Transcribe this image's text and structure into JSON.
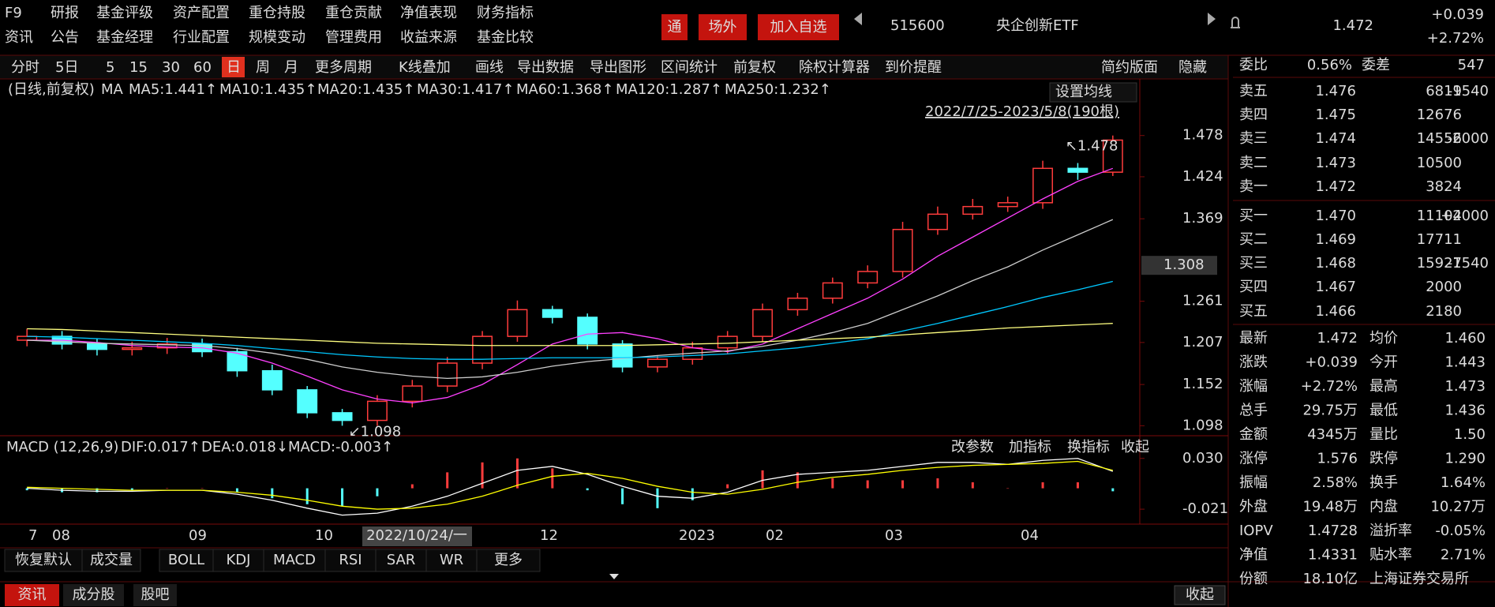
{
  "menu": {
    "row1": [
      "F9",
      "研报",
      "基金评级",
      "资产配置",
      "重仓持股",
      "重仓贡献",
      "净值表现",
      "财务指标"
    ],
    "row2": [
      "资讯",
      "公告",
      "基金经理",
      "行业配置",
      "规模变动",
      "管理费用",
      "收益来源",
      "基金比较"
    ]
  },
  "header": {
    "buttons": [
      "通",
      "场外",
      "加入自选"
    ],
    "code": "515600",
    "name": "央企创新ETF",
    "price": "1.472",
    "change": "+0.039",
    "change_pct": "+2.72%"
  },
  "toolbar": [
    "分时",
    "5日",
    "5",
    "15",
    "30",
    "60",
    "日",
    "周",
    "月",
    "更多周期",
    "K线叠加",
    "画线",
    "导出数据",
    "导出图形",
    "区间统计",
    "前复权",
    "除权计算器",
    "到价提醒"
  ],
  "toolbar_right": [
    "简约版面",
    "隐藏"
  ],
  "chart_data": [
    {
      "type": "candlestick",
      "period_label": "(日线,前复权)",
      "ma_label": "MA",
      "settings_button": "设置均线",
      "range": "2022/7/25-2023/5/8(190根)",
      "series": [
        {
          "legend": "MA5:1.441↑",
          "color": "#ffffff"
        },
        {
          "legend": "MA10:1.435↑",
          "color": "#ffff00"
        },
        {
          "legend": "MA20:1.435↑",
          "color": "#ff40ff",
          "values": [
            1.21,
            1.21,
            1.207,
            1.203,
            1.201,
            1.2,
            1.193,
            1.18,
            1.163,
            1.145,
            1.133,
            1.128,
            1.135,
            1.152,
            1.178,
            1.205,
            1.218,
            1.22,
            1.212,
            1.2,
            1.195,
            1.205,
            1.225,
            1.245,
            1.265,
            1.29,
            1.32,
            1.345,
            1.37,
            1.395,
            1.418,
            1.435
          ]
        },
        {
          "legend": "MA30:1.417↑",
          "color": "#00e600"
        },
        {
          "legend": "MA60:1.368↑",
          "color": "#cccccc",
          "values": [
            1.21,
            1.208,
            1.206,
            1.205,
            1.204,
            1.203,
            1.199,
            1.193,
            1.185,
            1.175,
            1.168,
            1.163,
            1.16,
            1.162,
            1.168,
            1.176,
            1.182,
            1.186,
            1.19,
            1.193,
            1.196,
            1.202,
            1.21,
            1.22,
            1.232,
            1.25,
            1.268,
            1.288,
            1.306,
            1.328,
            1.348,
            1.368
          ]
        },
        {
          "legend": "MA120:1.287↑",
          "color": "#00c8ff",
          "values": [
            1.215,
            1.214,
            1.212,
            1.21,
            1.208,
            1.206,
            1.203,
            1.199,
            1.195,
            1.191,
            1.188,
            1.186,
            1.185,
            1.185,
            1.186,
            1.187,
            1.187,
            1.187,
            1.188,
            1.19,
            1.192,
            1.196,
            1.2,
            1.206,
            1.212,
            1.222,
            1.232,
            1.243,
            1.254,
            1.266,
            1.276,
            1.287
          ]
        },
        {
          "legend": "MA250:1.232↑",
          "color": "#ffff80",
          "values": [
            1.225,
            1.224,
            1.222,
            1.22,
            1.218,
            1.216,
            1.214,
            1.212,
            1.21,
            1.208,
            1.206,
            1.205,
            1.204,
            1.203,
            1.203,
            1.203,
            1.203,
            1.203,
            1.204,
            1.205,
            1.206,
            1.208,
            1.21,
            1.212,
            1.214,
            1.217,
            1.22,
            1.223,
            1.226,
            1.228,
            1.23,
            1.232
          ]
        }
      ],
      "open": [
        1.21,
        1.215,
        1.205,
        1.198,
        1.2,
        1.205,
        1.195,
        1.17,
        1.145,
        1.115,
        1.105,
        1.13,
        1.15,
        1.18,
        1.215,
        1.25,
        1.24,
        1.205,
        1.175,
        1.185,
        1.2,
        1.215,
        1.25,
        1.265,
        1.285,
        1.3,
        1.355,
        1.375,
        1.385,
        1.39,
        1.435,
        1.43
      ],
      "high": [
        1.225,
        1.222,
        1.212,
        1.208,
        1.213,
        1.212,
        1.2,
        1.178,
        1.15,
        1.12,
        1.138,
        1.158,
        1.188,
        1.222,
        1.262,
        1.255,
        1.245,
        1.21,
        1.19,
        1.208,
        1.222,
        1.258,
        1.272,
        1.292,
        1.308,
        1.365,
        1.385,
        1.395,
        1.398,
        1.445,
        1.442,
        1.478
      ],
      "low": [
        1.202,
        1.198,
        1.19,
        1.19,
        1.192,
        1.188,
        1.162,
        1.138,
        1.108,
        1.098,
        1.098,
        1.122,
        1.142,
        1.172,
        1.208,
        1.232,
        1.198,
        1.168,
        1.168,
        1.178,
        1.192,
        1.208,
        1.242,
        1.258,
        1.278,
        1.292,
        1.348,
        1.368,
        1.378,
        1.382,
        1.42,
        1.425
      ],
      "close": [
        1.215,
        1.205,
        1.198,
        1.2,
        1.205,
        1.195,
        1.17,
        1.145,
        1.115,
        1.105,
        1.13,
        1.15,
        1.18,
        1.215,
        1.25,
        1.24,
        1.205,
        1.175,
        1.185,
        1.2,
        1.215,
        1.25,
        1.265,
        1.285,
        1.3,
        1.355,
        1.375,
        1.385,
        1.39,
        1.435,
        1.43,
        1.472
      ],
      "max_label": "↖1.478",
      "min_label": "↙1.098",
      "ylim": [
        1.087,
        1.549
      ],
      "yticks": [
        1.478,
        1.424,
        1.369,
        1.261,
        1.207,
        1.152,
        1.098
      ],
      "cursor_value": 1.308
    },
    {
      "type": "macd",
      "title": "MACD (12,26,9)",
      "legend": [
        {
          "text": "DIF:0.017↑",
          "color": "#ffffff"
        },
        {
          "text": "DEA:0.018↓",
          "color": "#ffff00"
        },
        {
          "text": "MACD:-0.003↑",
          "color": "#ff40ff"
        }
      ],
      "buttons": [
        "改参数",
        "加指标",
        "换指标"
      ],
      "dif": [
        0,
        -0.002,
        -0.003,
        -0.003,
        -0.002,
        -0.002,
        -0.006,
        -0.012,
        -0.02,
        -0.027,
        -0.025,
        -0.018,
        -0.008,
        0.005,
        0.018,
        0.022,
        0.014,
        0.002,
        -0.008,
        -0.01,
        -0.004,
        0.008,
        0.014,
        0.016,
        0.018,
        0.022,
        0.026,
        0.026,
        0.024,
        0.028,
        0.03,
        0.017
      ],
      "dea": [
        0.001,
        0,
        -0.001,
        -0.002,
        -0.002,
        -0.002,
        -0.004,
        -0.007,
        -0.012,
        -0.018,
        -0.021,
        -0.02,
        -0.016,
        -0.008,
        0.003,
        0.012,
        0.015,
        0.01,
        0.002,
        -0.004,
        -0.006,
        -0.001,
        0.006,
        0.011,
        0.014,
        0.018,
        0.021,
        0.023,
        0.024,
        0.025,
        0.027,
        0.018
      ],
      "hist": [
        -0.002,
        -0.004,
        -0.004,
        -0.002,
        0,
        0,
        -0.004,
        -0.01,
        -0.016,
        -0.018,
        -0.008,
        0.004,
        0.016,
        0.026,
        0.03,
        0.02,
        -0.002,
        -0.016,
        -0.02,
        -0.012,
        0.004,
        0.018,
        0.016,
        0.01,
        0.008,
        0.008,
        0.01,
        0.006,
        0,
        0.006,
        0.006,
        -0.003
      ],
      "ylim": [
        -0.036,
        0.052
      ],
      "yticks": [
        {
          "value": 0.03,
          "label": "0.030"
        },
        {
          "value": -0.021,
          "label": "-0.021"
        }
      ]
    }
  ],
  "x_labels": [
    "7",
    "08",
    "09",
    "10",
    "12",
    "2023",
    "02",
    "03",
    "04"
  ],
  "cursor_date": "2022/10/24/一",
  "indicator_tabs": [
    "恢复默认",
    "成交量",
    "BOLL",
    "KDJ",
    "MACD",
    "RSI",
    "SAR",
    "WR",
    "更多"
  ],
  "footer_tabs": [
    "资讯",
    "成分股",
    "股吧"
  ],
  "footer_right": "收起",
  "panel": {
    "weibi": [
      "委比",
      "0.56%",
      "委差",
      "547"
    ],
    "sell": [
      [
        "卖五",
        "1.476",
        "6819",
        "-1540"
      ],
      [
        "卖四",
        "1.475",
        "12676"
      ],
      [
        "卖三",
        "1.474",
        "14556",
        "-2000"
      ],
      [
        "卖二",
        "1.473",
        "10500"
      ],
      [
        "卖一",
        "1.472",
        "3824"
      ]
    ],
    "buy": [
      [
        "买一",
        "1.470",
        "11104",
        "+2000"
      ],
      [
        "买二",
        "1.469",
        "17711"
      ],
      [
        "买三",
        "1.468",
        "15927",
        "-1540"
      ],
      [
        "买四",
        "1.467",
        "2000"
      ],
      [
        "买五",
        "1.466",
        "2180"
      ]
    ],
    "stats": [
      [
        "最新",
        "1.472",
        "均价",
        "1.460"
      ],
      [
        "涨跌",
        "+0.039",
        "今开",
        "1.443"
      ],
      [
        "涨幅",
        "+2.72%",
        "最高",
        "1.473"
      ],
      [
        "总手",
        "29.75万",
        "最低",
        "1.436"
      ],
      [
        "金额",
        "4345万",
        "量比",
        "1.50"
      ],
      [
        "涨停",
        "1.576",
        "跌停",
        "1.290"
      ],
      [
        "振幅",
        "2.58%",
        "换手",
        "1.64%"
      ],
      [
        "外盘",
        "19.48万",
        "内盘",
        "10.27万"
      ],
      [
        "IOPV",
        "1.4728",
        "溢折率",
        "-0.05%"
      ],
      [
        "净值",
        "1.4331",
        "贴水率",
        "2.71%"
      ],
      [
        "份额",
        "18.10亿",
        "上海证券交易所"
      ]
    ]
  }
}
